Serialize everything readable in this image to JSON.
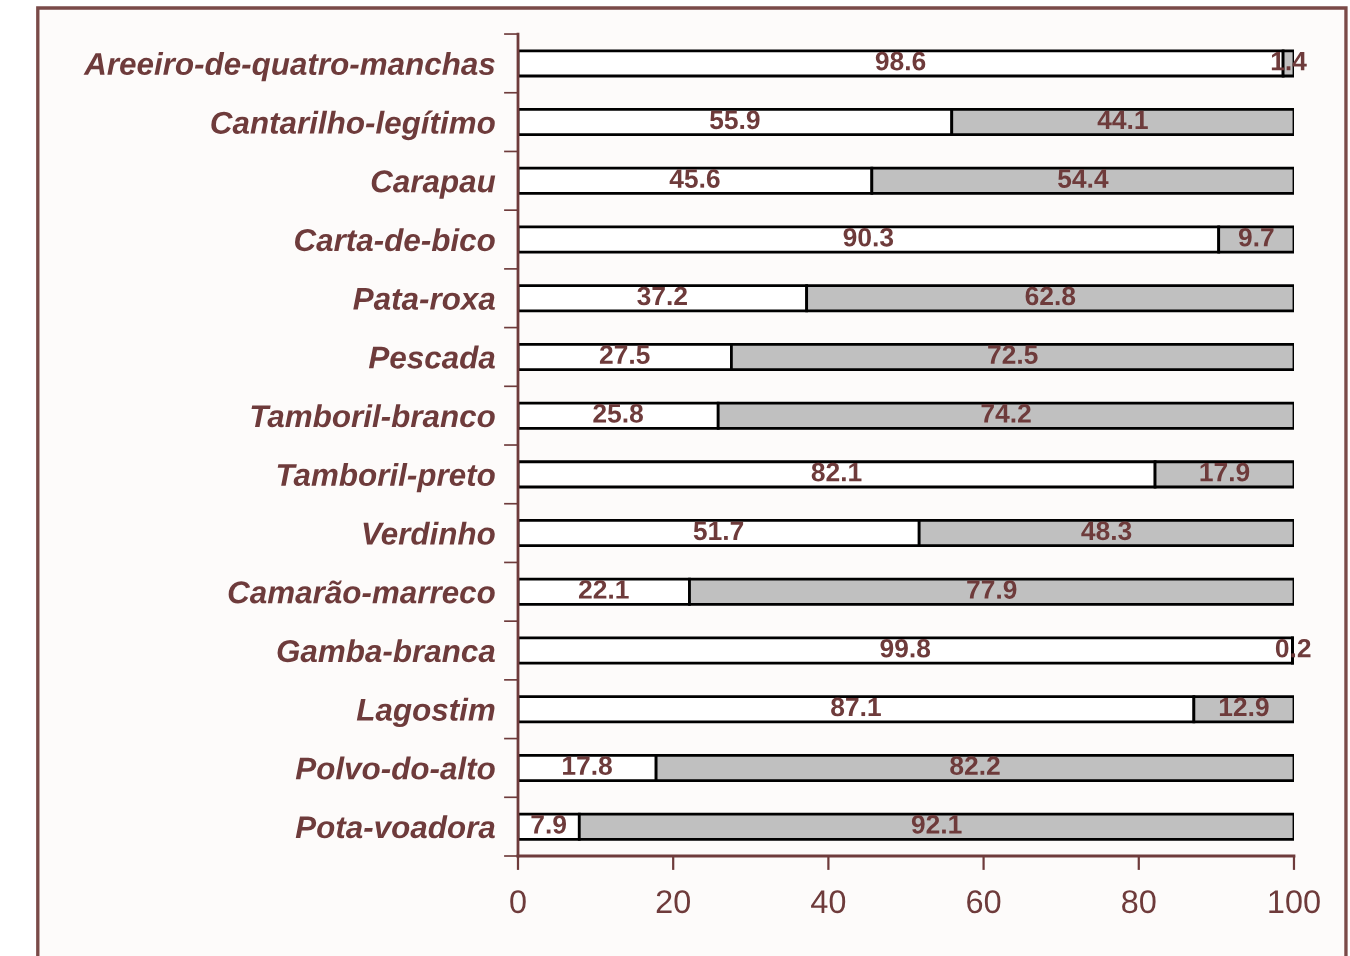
{
  "chart_data": {
    "type": "bar",
    "orientation": "horizontal",
    "stacked": true,
    "categories": [
      "Areeiro-de-quatro-manchas",
      "Cantarilho-legítimo",
      "Carapau",
      "Carta-de-bico",
      "Pata-roxa",
      "Pescada",
      "Tamboril-branco",
      "Tamboril-preto",
      "Verdinho",
      "Camarão-marreco",
      "Gamba-branca",
      "Lagostim",
      "Polvo-do-alto",
      "Pota-voadora"
    ],
    "series": [
      {
        "color": "#ffffff",
        "values": [
          98.6,
          55.9,
          45.6,
          90.3,
          37.2,
          27.5,
          25.8,
          82.1,
          51.7,
          22.1,
          99.8,
          87.1,
          17.8,
          7.9
        ]
      },
      {
        "color": "#c0c0c0",
        "values": [
          1.4,
          44.1,
          54.4,
          9.7,
          62.8,
          72.5,
          74.2,
          17.9,
          48.3,
          77.9,
          0.2,
          12.9,
          82.2,
          92.1
        ]
      }
    ],
    "xlim": [
      0,
      100
    ],
    "xticks": [
      0,
      20,
      40,
      60,
      80,
      100
    ],
    "data_labels": true
  }
}
